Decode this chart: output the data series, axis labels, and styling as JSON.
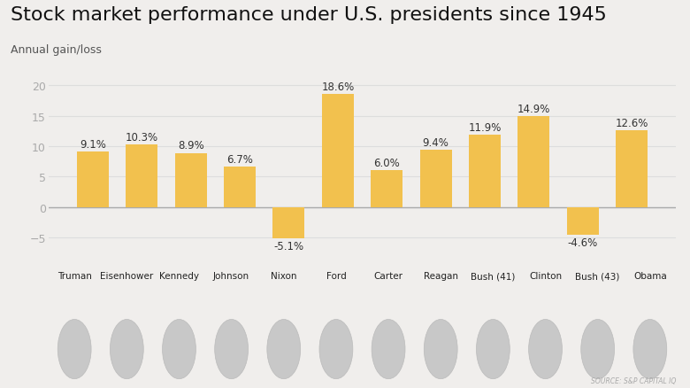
{
  "title": "Stock market performance under U.S. presidents since 1945",
  "subtitle": "Annual gain/loss",
  "source": "SOURCE: S&P CAPITAL IQ",
  "presidents": [
    "Truman",
    "Eisenhower",
    "Kennedy",
    "Johnson",
    "Nixon",
    "Ford",
    "Carter",
    "Reagan",
    "Bush (41)",
    "Clinton",
    "Bush (43)",
    "Obama"
  ],
  "values": [
    9.1,
    10.3,
    8.9,
    6.7,
    -5.1,
    18.6,
    6.0,
    9.4,
    11.9,
    14.9,
    -4.6,
    12.6
  ],
  "bar_color": "#F2C14E",
  "background_color": "#F0EEEC",
  "plot_bg_color": "#F0EEEC",
  "title_fontsize": 16,
  "subtitle_fontsize": 9,
  "label_fontsize": 8.5,
  "tick_fontsize": 9,
  "ylim": [
    -8,
    22
  ],
  "yticks": [
    -5,
    0,
    5,
    10,
    15,
    20
  ]
}
